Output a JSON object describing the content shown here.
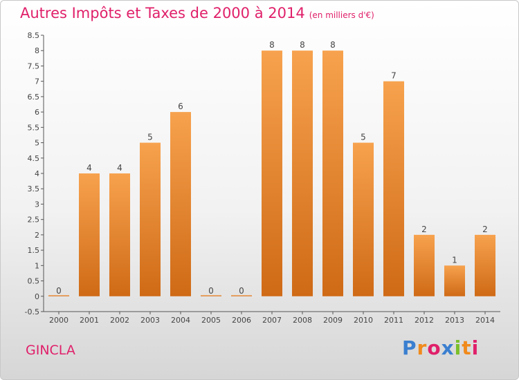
{
  "header": {
    "title": "Autres Impôts et Taxes de 2000 à 2014",
    "subtitle": "(en milliers d'€)"
  },
  "footer": {
    "place": "GINCLA",
    "logo_letters": [
      "P",
      "r",
      "o",
      "x",
      "i",
      "t",
      "i"
    ],
    "logo_colors": [
      "#3a7fd0",
      "#f08a1c",
      "#e0206a",
      "#3a7fd0",
      "#7bbf2a",
      "#f08a1c",
      "#e0206a"
    ]
  },
  "chart_data": {
    "type": "bar",
    "title": "Autres Impôts et Taxes de 2000 à 2014",
    "subtitle": "(en milliers d'€)",
    "xlabel": "",
    "ylabel": "",
    "categories": [
      "2000",
      "2001",
      "2002",
      "2003",
      "2004",
      "2005",
      "2006",
      "2007",
      "2008",
      "2009",
      "2010",
      "2011",
      "2012",
      "2013",
      "2014"
    ],
    "values": [
      0,
      4,
      4,
      5,
      6,
      0,
      0,
      8,
      8,
      8,
      5,
      7,
      2,
      1,
      2
    ],
    "data_labels": [
      "0",
      "4",
      "4",
      "5",
      "6",
      "0",
      "0",
      "8",
      "8",
      "8",
      "5",
      "7",
      "2",
      "1",
      "2"
    ],
    "ylim": [
      -0.5,
      8.5
    ],
    "yticks": [
      "-0.5",
      "0",
      "0.5",
      "1",
      "1.5",
      "2",
      "2.5",
      "3",
      "3.5",
      "4",
      "4.5",
      "5",
      "5.5",
      "6",
      "6.5",
      "7",
      "7.5",
      "8",
      "8.5"
    ],
    "grid": false,
    "colors": {
      "bar_top": "#f7a24e",
      "bar_bottom": "#cf6a16",
      "title": "#e0206a"
    }
  }
}
